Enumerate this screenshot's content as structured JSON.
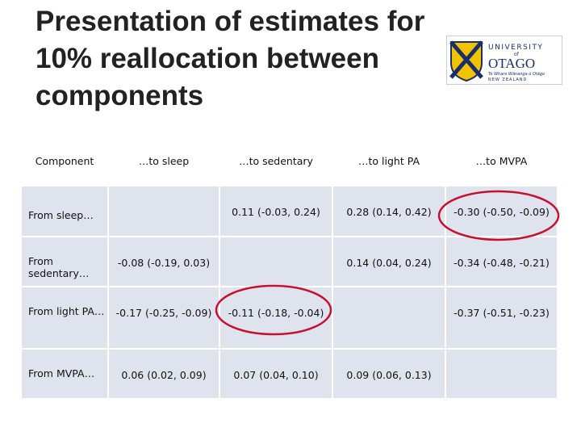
{
  "title": "Presentation of estimates for 10% reallocation between components",
  "logo": {
    "line1": "UNIVERSITY",
    "line2": "of",
    "line3": "OTAGO",
    "line4": "Te Whare Wānanga o Otāgo",
    "line5": "NEW ZEALAND"
  },
  "table": {
    "header": [
      "Component",
      "…to sleep",
      "…to sedentary",
      "…to light PA",
      "…to MVPA"
    ],
    "rows": [
      [
        "From sleep…",
        null,
        "0.11 (-0.03, 0.24)",
        "0.28 (0.14, 0.42)",
        "-0.30 (-0.50, -0.09)"
      ],
      [
        "From sedentary…",
        "-0.08 (-0.19, 0.03)",
        null,
        "0.14 (0.04, 0.24)",
        "-0.34 (-0.48, -0.21)"
      ],
      [
        "From light PA…",
        "-0.17 (-0.25, -0.09)",
        "-0.11 (-0.18, -0.04)",
        null,
        "-0.37 (-0.51, -0.23)"
      ],
      [
        "From MVPA…",
        "0.06 (0.02, 0.09)",
        "0.07 (0.04, 0.10)",
        "0.09 (0.06, 0.13)",
        null
      ]
    ]
  }
}
